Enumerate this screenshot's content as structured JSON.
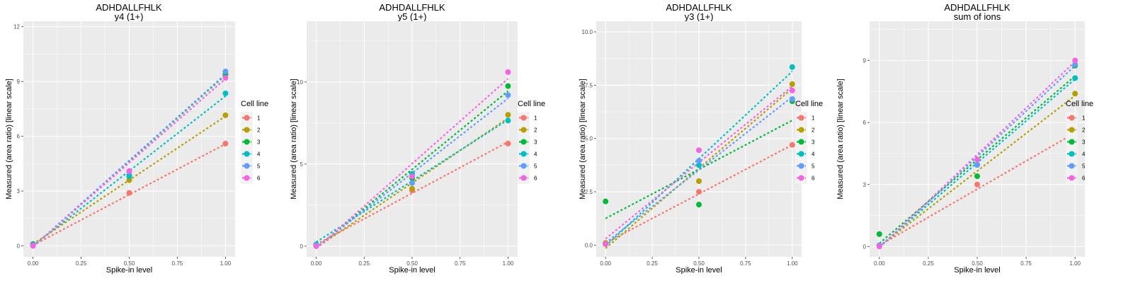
{
  "chart_data": [
    {
      "type": "line",
      "title": "ADHDALLFHLK",
      "subtitle": "y4 (1+)",
      "xlabel": "Spike-in level",
      "ylabel": "Measured (area ratio) [linear scale]",
      "xlim": [
        -0.05,
        1.05
      ],
      "ylim": [
        -0.6,
        12.3
      ],
      "xticks": [
        0,
        0.25,
        0.5,
        0.75,
        1
      ],
      "xtick_labels": [
        "0.00",
        "0.25",
        "0.50",
        "0.75",
        "1.00"
      ],
      "yticks": [
        0,
        3,
        6,
        9,
        12
      ],
      "ytick_labels": [
        "0",
        "3",
        "6",
        "9",
        "12"
      ],
      "grid": true,
      "legend": {
        "title": "Cell line",
        "position": "right"
      },
      "x": [
        0,
        0.5,
        1
      ],
      "series": [
        {
          "name": "1",
          "color": "#F8766D",
          "values": [
            0.05,
            2.9,
            5.6
          ],
          "fit": [
            0.03,
            5.58
          ]
        },
        {
          "name": "2",
          "color": "#B79F00",
          "values": [
            0.05,
            3.6,
            7.15
          ],
          "fit": [
            0.1,
            7.1
          ]
        },
        {
          "name": "3",
          "color": "#00BA38",
          "values": [
            0.1,
            3.85,
            9.4
          ],
          "fit": [
            -0.05,
            9.35
          ]
        },
        {
          "name": "4",
          "color": "#00BFC4",
          "values": [
            0.05,
            3.8,
            8.35
          ],
          "fit": [
            0.0,
            8.2
          ]
        },
        {
          "name": "5",
          "color": "#619CFF",
          "values": [
            0.05,
            4.05,
            9.55
          ],
          "fit": [
            -0.05,
            9.4
          ]
        },
        {
          "name": "6",
          "color": "#F564E3",
          "values": [
            0.0,
            4.1,
            9.2
          ],
          "fit": [
            -0.05,
            9.15
          ]
        }
      ]
    },
    {
      "type": "line",
      "title": "ADHDALLFHLK",
      "subtitle": "y5 (1+)",
      "xlabel": "Spike-in level",
      "ylabel": "Measured (area ratio) [linear scale]",
      "xlim": [
        -0.05,
        1.05
      ],
      "ylim": [
        -0.65,
        13.7
      ],
      "xticks": [
        0,
        0.25,
        0.5,
        0.75,
        1
      ],
      "xtick_labels": [
        "0.00",
        "0.25",
        "0.50",
        "0.75",
        "1.00"
      ],
      "yticks": [
        0,
        5,
        10
      ],
      "ytick_labels": [
        "0",
        "5",
        "10"
      ],
      "grid": true,
      "legend": {
        "title": "Cell line",
        "position": "right"
      },
      "x": [
        0,
        0.5,
        1
      ],
      "series": [
        {
          "name": "1",
          "color": "#F8766D",
          "values": [
            0.05,
            3.4,
            6.25
          ],
          "fit": [
            0.1,
            6.35
          ]
        },
        {
          "name": "2",
          "color": "#B79F00",
          "values": [
            0.05,
            3.5,
            8.0
          ],
          "fit": [
            -0.1,
            7.8
          ]
        },
        {
          "name": "3",
          "color": "#00BA38",
          "values": [
            0.1,
            4.15,
            9.75
          ],
          "fit": [
            -0.1,
            9.45
          ]
        },
        {
          "name": "4",
          "color": "#00BFC4",
          "values": [
            0.1,
            4.4,
            7.65
          ],
          "fit": [
            0.25,
            7.7
          ]
        },
        {
          "name": "5",
          "color": "#619CFF",
          "values": [
            0.05,
            3.85,
            9.2
          ],
          "fit": [
            -0.1,
            9.0
          ]
        },
        {
          "name": "6",
          "color": "#F564E3",
          "values": [
            0.0,
            4.25,
            10.6
          ],
          "fit": [
            -0.15,
            10.2
          ]
        }
      ]
    },
    {
      "type": "line",
      "title": "ADHDALLFHLK",
      "subtitle": "y3 (1+)",
      "xlabel": "Spike-in level",
      "ylabel": "Measured (area ratio) [linear scale]",
      "xlim": [
        -0.05,
        1.05
      ],
      "ylim": [
        -0.55,
        10.5
      ],
      "xticks": [
        0,
        0.25,
        0.5,
        0.75,
        1
      ],
      "xtick_labels": [
        "0.00",
        "0.25",
        "0.50",
        "0.75",
        "1.00"
      ],
      "yticks": [
        0,
        2.5,
        5,
        7.5,
        10
      ],
      "ytick_labels": [
        "0.0",
        "2.5",
        "5.0",
        "7.5",
        "10.0"
      ],
      "grid": true,
      "legend": {
        "title": "Cell line",
        "position": "right"
      },
      "x": [
        0,
        0.5,
        1
      ],
      "series": [
        {
          "name": "1",
          "color": "#F8766D",
          "values": [
            0.1,
            2.5,
            4.7
          ],
          "fit": [
            0.1,
            4.7
          ]
        },
        {
          "name": "2",
          "color": "#B79F00",
          "values": [
            0.1,
            3.0,
            7.55
          ],
          "fit": [
            -0.15,
            7.35
          ]
        },
        {
          "name": "3",
          "color": "#00BA38",
          "values": [
            2.05,
            1.9,
            6.75
          ],
          "fit": [
            1.25,
            5.85
          ]
        },
        {
          "name": "4",
          "color": "#00BFC4",
          "values": [
            0.05,
            3.75,
            8.35
          ],
          "fit": [
            -0.05,
            8.15
          ]
        },
        {
          "name": "5",
          "color": "#619CFF",
          "values": [
            0.05,
            3.95,
            6.85
          ],
          "fit": [
            0.1,
            6.95
          ]
        },
        {
          "name": "6",
          "color": "#F564E3",
          "values": [
            0.05,
            4.45,
            7.25
          ],
          "fit": [
            0.3,
            7.45
          ]
        }
      ]
    },
    {
      "type": "line",
      "title": "ADHDALLFHLK",
      "subtitle": "sum of ions",
      "xlabel": "Spike-in level",
      "ylabel": "Measured (area ratio) [linear scale]",
      "xlim": [
        -0.05,
        1.05
      ],
      "ylim": [
        -0.5,
        10.9
      ],
      "xticks": [
        0,
        0.25,
        0.5,
        0.75,
        1
      ],
      "xtick_labels": [
        "0.00",
        "0.25",
        "0.50",
        "0.75",
        "1.00"
      ],
      "yticks": [
        0,
        3,
        6,
        9
      ],
      "ytick_labels": [
        "0",
        "3",
        "6",
        "9"
      ],
      "grid": true,
      "legend": {
        "title": "Cell line",
        "position": "right"
      },
      "x": [
        0,
        0.5,
        1
      ],
      "series": [
        {
          "name": "1",
          "color": "#F8766D",
          "values": [
            0.05,
            3.0,
            5.5
          ],
          "fit": [
            0.05,
            5.5
          ]
        },
        {
          "name": "2",
          "color": "#B79F00",
          "values": [
            0.05,
            3.95,
            7.4
          ],
          "fit": [
            0.0,
            7.3
          ]
        },
        {
          "name": "3",
          "color": "#00BA38",
          "values": [
            0.6,
            3.4,
            8.75
          ],
          "fit": [
            0.15,
            8.25
          ]
        },
        {
          "name": "4",
          "color": "#00BFC4",
          "values": [
            0.05,
            3.95,
            8.15
          ],
          "fit": [
            0.0,
            8.1
          ]
        },
        {
          "name": "5",
          "color": "#619CFF",
          "values": [
            0.05,
            3.95,
            8.8
          ],
          "fit": [
            -0.05,
            8.75
          ]
        },
        {
          "name": "6",
          "color": "#F564E3",
          "values": [
            0.0,
            4.2,
            9.0
          ],
          "fit": [
            -0.05,
            8.95
          ]
        }
      ]
    }
  ]
}
